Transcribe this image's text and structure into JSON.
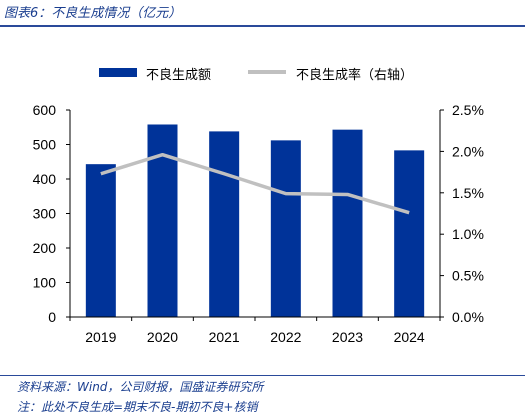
{
  "header": {
    "title": "图表6：不良生成情况（亿元）"
  },
  "footer": {
    "source": "资料来源：Wind，公司财报，国盛证券研究所",
    "note": "注：此处不良生成=期末不良-期初不良+核销"
  },
  "colors": {
    "bar": "#003399",
    "line": "#c0c0c0",
    "accent": "#2a4a9a"
  },
  "chart_data": {
    "type": "bar",
    "categories": [
      "2019",
      "2020",
      "2021",
      "2022",
      "2023",
      "2024"
    ],
    "series": [
      {
        "name": "不良生成额",
        "type": "bar",
        "axis": "left",
        "values": [
          443,
          558,
          538,
          512,
          543,
          483
        ]
      },
      {
        "name": "不良生成率（右轴）",
        "type": "line",
        "axis": "right",
        "values": [
          1.73,
          1.96,
          1.73,
          1.49,
          1.48,
          1.26
        ]
      }
    ],
    "y_left": {
      "min": 0,
      "max": 600,
      "ticks": [
        "0",
        "100",
        "200",
        "300",
        "400",
        "500",
        "600"
      ]
    },
    "y_right": {
      "min": 0,
      "max": 2.5,
      "ticks": [
        "0.0%",
        "0.5%",
        "1.0%",
        "1.5%",
        "2.0%",
        "2.5%"
      ]
    },
    "grid": false,
    "legend": "top"
  }
}
